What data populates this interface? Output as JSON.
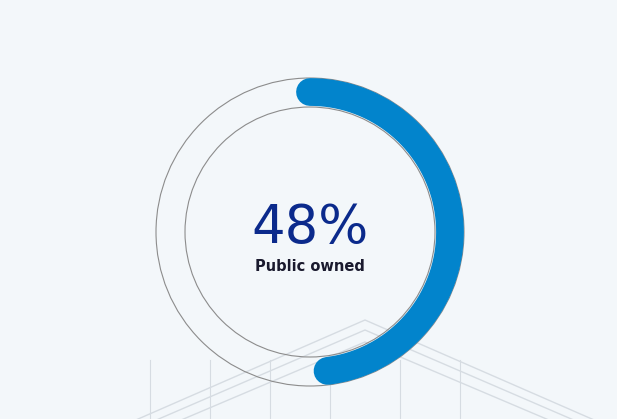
{
  "chart_data": {
    "type": "donut",
    "categories": [
      "Public owned"
    ],
    "values": [
      48
    ],
    "value_labels": [
      "48%"
    ],
    "color": "#0284cc"
  }
}
